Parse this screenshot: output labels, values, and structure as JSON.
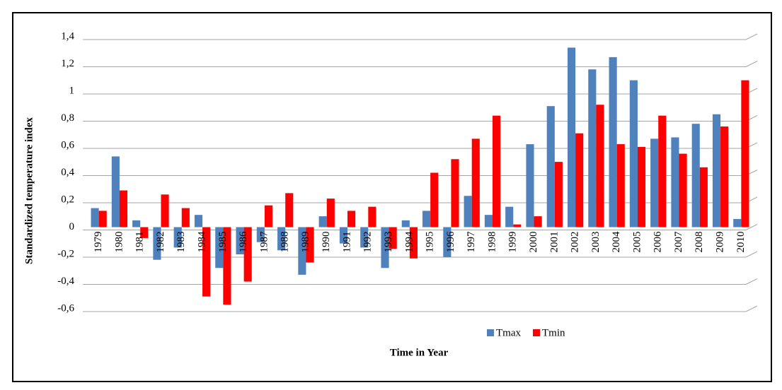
{
  "chart_data": {
    "type": "bar",
    "y_label": "Standardized temperature index",
    "x_label": "Time in Year",
    "categories": [
      "1979",
      "1980",
      "1981",
      "1982",
      "1983",
      "1984",
      "1985",
      "1986",
      "1987",
      "1988",
      "1989",
      "1990",
      "1991",
      "1992",
      "1993",
      "1994",
      "1995",
      "1996",
      "1997",
      "1998",
      "1999",
      "2000",
      "2001",
      "2002",
      "2003",
      "2004",
      "2005",
      "2006",
      "2007",
      "2008",
      "2009",
      "2010"
    ],
    "series": [
      {
        "name": "Tmax",
        "color": "#4f81bd",
        "values": [
          0.14,
          0.52,
          0.05,
          -0.24,
          -0.15,
          0.09,
          -0.3,
          -0.2,
          -0.11,
          -0.17,
          -0.35,
          0.08,
          -0.12,
          -0.15,
          -0.3,
          0.05,
          0.12,
          -0.22,
          0.23,
          0.09,
          0.15,
          0.61,
          0.89,
          1.32,
          1.16,
          1.25,
          1.08,
          0.65,
          0.66,
          0.76,
          0.83,
          0.06
        ]
      },
      {
        "name": "Tmin",
        "color": "#ff0000",
        "values": [
          0.12,
          0.27,
          -0.08,
          0.24,
          0.14,
          -0.51,
          -0.57,
          -0.4,
          0.16,
          0.25,
          -0.26,
          0.21,
          0.12,
          0.15,
          -0.16,
          -0.23,
          0.4,
          0.5,
          0.65,
          0.82,
          0.02,
          0.08,
          0.48,
          0.69,
          0.9,
          0.61,
          0.59,
          0.82,
          0.54,
          0.44,
          0.74,
          1.08
        ]
      }
    ],
    "ylim": [
      -0.6,
      1.4
    ],
    "yticks": [
      {
        "value": -0.6,
        "label": "-0,6"
      },
      {
        "value": -0.4,
        "label": "-0,4"
      },
      {
        "value": -0.2,
        "label": "-0,2"
      },
      0,
      {
        "value": 0.2,
        "label": "0,2"
      },
      {
        "value": 0.4,
        "label": "0,4"
      },
      {
        "value": 0.6,
        "label": "0,6"
      },
      {
        "value": 0.8,
        "label": "0,8"
      },
      1,
      {
        "value": 1.2,
        "label": "1,2"
      },
      {
        "value": 1.4,
        "label": "1,4"
      }
    ],
    "grid": true,
    "legend": "bottom"
  }
}
